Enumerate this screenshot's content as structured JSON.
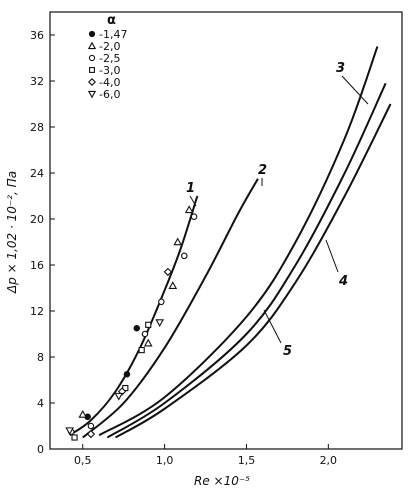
{
  "chart_data": {
    "type": "scatter",
    "xlabel": "Re ×10⁻⁵",
    "ylabel": "Δp × 1,02 · 10⁻², Па",
    "xlim": [
      0.3,
      2.45
    ],
    "ylim": [
      0,
      38
    ],
    "x_ticks": [
      {
        "value": 0.5,
        "label": "0,5"
      },
      {
        "value": 1.0,
        "label": "1,0"
      },
      {
        "value": 1.5,
        "label": "1,5"
      },
      {
        "value": 2.0,
        "label": "2,0"
      }
    ],
    "y_ticks": [
      {
        "value": 0,
        "label": "0"
      },
      {
        "value": 4,
        "label": "4"
      },
      {
        "value": 8,
        "label": "8"
      },
      {
        "value": 12,
        "label": "12"
      },
      {
        "value": 16,
        "label": "16"
      },
      {
        "value": 20,
        "label": "20"
      },
      {
        "value": 24,
        "label": "24"
      },
      {
        "value": 28,
        "label": "28"
      },
      {
        "value": 32,
        "label": "32"
      },
      {
        "value": 36,
        "label": "36"
      }
    ],
    "grid": false,
    "legend": {
      "title": "α",
      "placement": "top-left",
      "entries": [
        {
          "marker": "filled-circle",
          "label": "-1,47"
        },
        {
          "marker": "triangle-up",
          "label": "-2,0"
        },
        {
          "marker": "open-circle",
          "label": "-2,5"
        },
        {
          "marker": "square",
          "label": "-3,0"
        },
        {
          "marker": "diamond",
          "label": "-4,0"
        },
        {
          "marker": "triangle-down",
          "label": "-6,0"
        }
      ]
    },
    "curves": [
      {
        "label": "1",
        "points": [
          [
            0.42,
            1.2
          ],
          [
            0.55,
            2.5
          ],
          [
            0.7,
            5.0
          ],
          [
            0.85,
            8.8
          ],
          [
            1.0,
            13.8
          ],
          [
            1.1,
            17.5
          ],
          [
            1.2,
            22.0
          ]
        ]
      },
      {
        "label": "2",
        "points": [
          [
            0.5,
            1.0
          ],
          [
            0.75,
            4.0
          ],
          [
            1.0,
            8.8
          ],
          [
            1.25,
            15.0
          ],
          [
            1.45,
            20.5
          ],
          [
            1.57,
            23.5
          ]
        ]
      },
      {
        "label": "3",
        "points": [
          [
            0.6,
            1.2
          ],
          [
            1.0,
            4.5
          ],
          [
            1.5,
            11.5
          ],
          [
            1.8,
            18.0
          ],
          [
            2.1,
            27.0
          ],
          [
            2.3,
            35.0
          ]
        ]
      },
      {
        "label": "4",
        "points": [
          [
            0.65,
            1.0
          ],
          [
            1.0,
            4.0
          ],
          [
            1.5,
            10.0
          ],
          [
            1.8,
            16.0
          ],
          [
            2.1,
            24.0
          ],
          [
            2.35,
            31.8
          ]
        ]
      },
      {
        "label": "5",
        "points": [
          [
            0.7,
            1.0
          ],
          [
            1.0,
            3.5
          ],
          [
            1.5,
            9.0
          ],
          [
            1.8,
            14.5
          ],
          [
            2.1,
            22.0
          ],
          [
            2.38,
            30.0
          ]
        ]
      }
    ],
    "points": [
      {
        "marker": "filled-circle",
        "x": 0.53,
        "y": 2.8
      },
      {
        "marker": "filled-circle",
        "x": 0.77,
        "y": 6.5
      },
      {
        "marker": "filled-circle",
        "x": 0.83,
        "y": 10.5
      },
      {
        "marker": "triangle-up",
        "x": 0.5,
        "y": 3.0
      },
      {
        "marker": "triangle-up",
        "x": 0.9,
        "y": 9.2
      },
      {
        "marker": "triangle-up",
        "x": 1.05,
        "y": 14.2
      },
      {
        "marker": "triangle-up",
        "x": 1.08,
        "y": 18.0
      },
      {
        "marker": "triangle-up",
        "x": 1.15,
        "y": 20.8
      },
      {
        "marker": "open-circle",
        "x": 0.43,
        "y": 1.5
      },
      {
        "marker": "open-circle",
        "x": 0.55,
        "y": 2.0
      },
      {
        "marker": "open-circle",
        "x": 0.88,
        "y": 10.0
      },
      {
        "marker": "open-circle",
        "x": 0.98,
        "y": 12.8
      },
      {
        "marker": "open-circle",
        "x": 1.12,
        "y": 16.8
      },
      {
        "marker": "open-circle",
        "x": 1.18,
        "y": 20.2
      },
      {
        "marker": "square",
        "x": 0.45,
        "y": 1.0
      },
      {
        "marker": "square",
        "x": 0.76,
        "y": 5.3
      },
      {
        "marker": "square",
        "x": 0.86,
        "y": 8.6
      },
      {
        "marker": "square",
        "x": 0.9,
        "y": 10.8
      },
      {
        "marker": "diamond",
        "x": 0.55,
        "y": 1.3
      },
      {
        "marker": "diamond",
        "x": 0.74,
        "y": 5.0
      },
      {
        "marker": "diamond",
        "x": 1.02,
        "y": 15.4
      },
      {
        "marker": "triangle-down",
        "x": 0.42,
        "y": 1.6
      },
      {
        "marker": "triangle-down",
        "x": 0.72,
        "y": 4.6
      },
      {
        "marker": "triangle-down",
        "x": 0.97,
        "y": 11.0
      }
    ]
  }
}
